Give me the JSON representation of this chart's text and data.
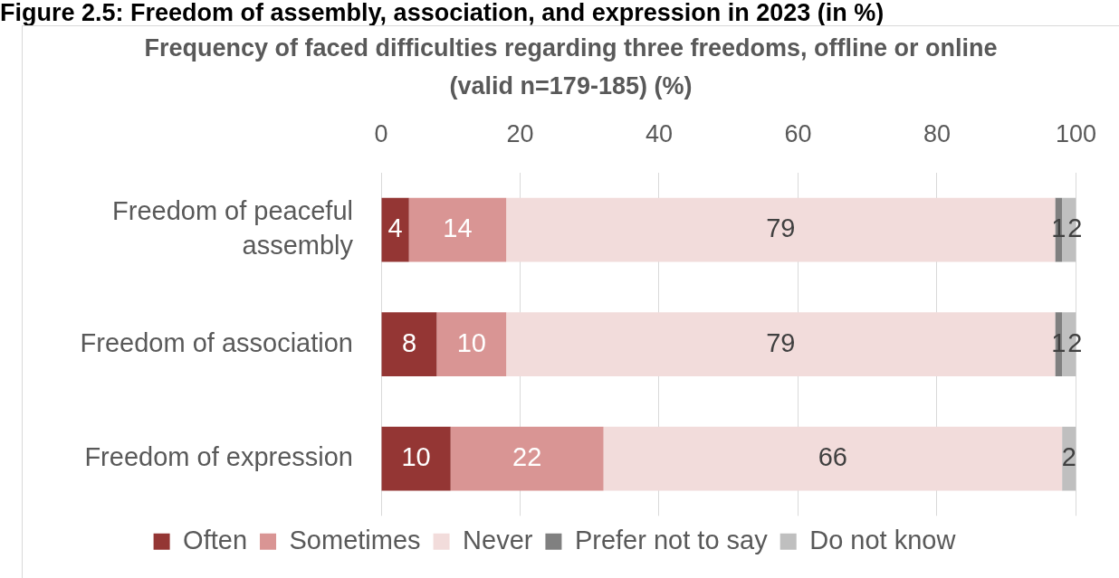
{
  "chart_data": {
    "type": "bar",
    "orientation": "horizontal",
    "stacked": true,
    "title": "Figure 2.5: Freedom of assembly, association, and expression in 2023 (in %)",
    "subtitle": "Frequency of faced difficulties regarding three freedoms, offline or online (valid n=179-185) (%)",
    "categories": [
      "Freedom of peaceful assembly",
      "Freedom of association",
      "Freedom of expression"
    ],
    "series": [
      {
        "name": "Often",
        "color": "#943634",
        "values": [
          4,
          8,
          10
        ]
      },
      {
        "name": "Sometimes",
        "color": "#d99594",
        "values": [
          14,
          10,
          22
        ]
      },
      {
        "name": "Never",
        "color": "#f2dcdb",
        "values": [
          79,
          79,
          66
        ]
      },
      {
        "name": "Prefer not to say",
        "color": "#808080",
        "values": [
          1,
          1,
          null
        ]
      },
      {
        "name": "Do not know",
        "color": "#bfbfbf",
        "values": [
          2,
          2,
          2
        ]
      }
    ],
    "xlim": [
      0,
      100
    ],
    "xticks": [
      0,
      20,
      40,
      60,
      80,
      100
    ],
    "grid": "x",
    "legend": "bottom",
    "data_labels": true
  }
}
